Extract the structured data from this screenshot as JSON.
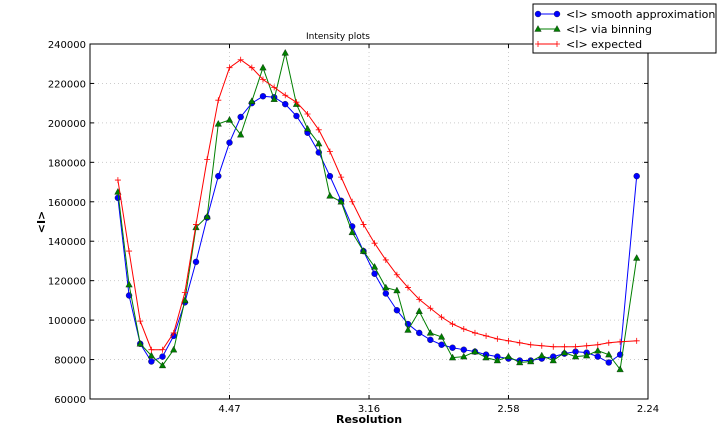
{
  "chart_data": {
    "type": "line",
    "title": "Intensity plots",
    "xlabel": "Resolution",
    "ylabel": "<I>",
    "x_scale": "reciprocal-square (1/d^2)",
    "xlim": [
      null,
      2.236
    ],
    "ylim": [
      60000,
      240000
    ],
    "x_ticks": [
      "4.47",
      "3.16",
      "2.58",
      "2.24"
    ],
    "x_tick_values": [
      4.472,
      3.162,
      2.582,
      2.236
    ],
    "y_ticks": [
      60000,
      80000,
      100000,
      120000,
      140000,
      160000,
      180000,
      200000,
      220000,
      240000
    ],
    "grid": true,
    "legend_position": "top-right (outside)",
    "x": [
      10.0,
      8.452,
      7.454,
      6.742,
      6.202,
      5.774,
      5.423,
      5.13,
      4.88,
      4.663,
      4.472,
      4.303,
      4.152,
      4.016,
      3.892,
      3.78,
      3.676,
      3.581,
      3.492,
      3.41,
      3.333,
      3.262,
      3.194,
      3.131,
      3.071,
      3.015,
      2.962,
      2.911,
      2.863,
      2.817,
      2.774,
      2.732,
      2.692,
      2.654,
      2.617,
      2.582,
      2.548,
      2.516,
      2.485,
      2.454,
      2.425,
      2.397,
      2.37,
      2.344,
      2.319,
      2.294,
      2.259
    ],
    "series": [
      {
        "name": "<I> smooth approximation",
        "color": "#0000ff",
        "marker": "circle",
        "values": [
          162000,
          112500,
          88000,
          79000,
          81500,
          92000,
          109000,
          129500,
          152000,
          173000,
          190000,
          203000,
          210000,
          213500,
          213000,
          209500,
          203500,
          195000,
          185000,
          173000,
          160500,
          147500,
          135000,
          123500,
          113500,
          105000,
          98000,
          93500,
          90000,
          87500,
          86000,
          85000,
          84000,
          82500,
          81500,
          80500,
          79500,
          79500,
          80500,
          81500,
          83000,
          84000,
          83500,
          81500,
          78500,
          82500,
          173000
        ]
      },
      {
        "name": "<I> via binning",
        "color": "#007f00",
        "marker": "triangle",
        "values": [
          165000,
          118000,
          88000,
          82000,
          77000,
          85000,
          110000,
          147000,
          152500,
          199500,
          201500,
          194000,
          211000,
          228000,
          212000,
          235500,
          209500,
          197000,
          189500,
          163000,
          160000,
          144500,
          135000,
          127000,
          116500,
          115000,
          95000,
          104500,
          93500,
          91500,
          81000,
          81500,
          84000,
          81000,
          79500,
          81500,
          78500,
          79000,
          82000,
          79500,
          83500,
          81500,
          82000,
          84500,
          82500,
          75000,
          131500
        ]
      },
      {
        "name": "<I> expected",
        "color": "#ff0000",
        "marker": "plus",
        "values": [
          171000,
          135000,
          99500,
          85000,
          85000,
          93500,
          114000,
          148500,
          181500,
          211500,
          228000,
          232000,
          228000,
          222000,
          218000,
          214000,
          210500,
          204500,
          196500,
          185500,
          172500,
          160000,
          148500,
          139000,
          130500,
          123000,
          116500,
          110500,
          106000,
          101500,
          98000,
          95500,
          93500,
          92000,
          90500,
          89500,
          88500,
          87500,
          87000,
          86500,
          86500,
          86500,
          87000,
          87500,
          88500,
          89000,
          89500
        ]
      }
    ]
  }
}
